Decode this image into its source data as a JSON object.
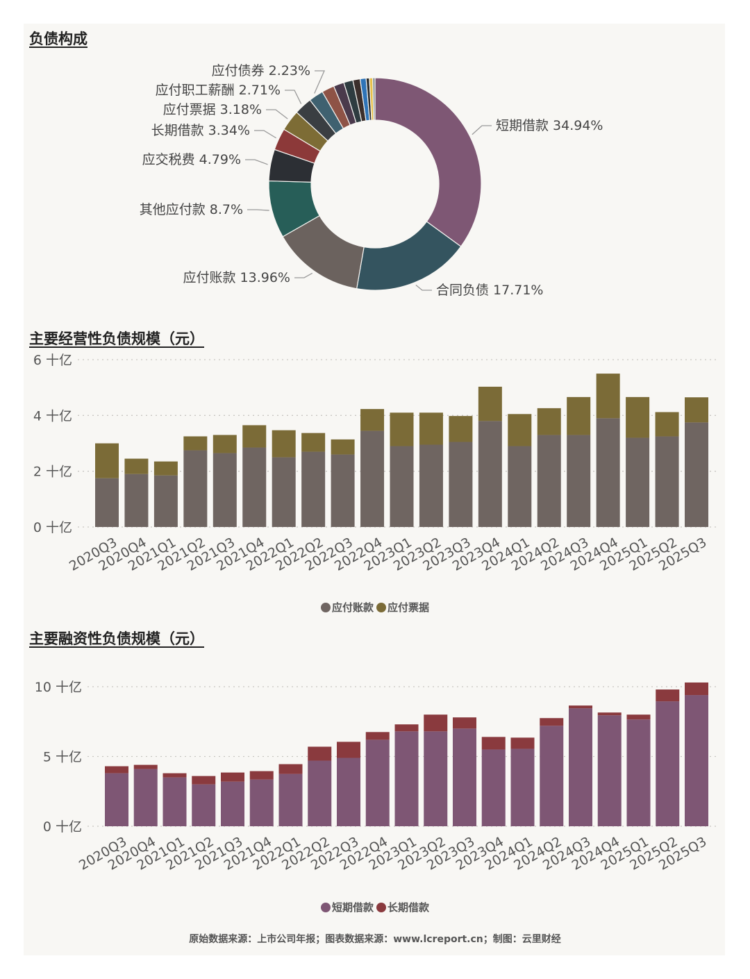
{
  "section_titles": {
    "pie": "负债构成",
    "operating": "主要经营性负债规模（元）",
    "financing": "主要融资性负债规模（元）"
  },
  "footer": "原始数据来源：上市公司年报；图表数据来源：www.lcreport.cn；制图：云里财经",
  "chart_data": [
    {
      "type": "pie",
      "variant": "donut",
      "title": "负债构成",
      "slices": [
        {
          "label": "短期借款",
          "value": 34.94,
          "display": "短期借款 34.94%",
          "color": "#7e5774",
          "labeled": true
        },
        {
          "label": "合同负债",
          "value": 17.71,
          "display": "合同负债 17.71%",
          "color": "#34545f",
          "labeled": true
        },
        {
          "label": "应付账款",
          "value": 13.96,
          "display": "应付账款 13.96%",
          "color": "#6b625e",
          "labeled": true
        },
        {
          "label": "其他应付款",
          "value": 8.7,
          "display": "其他应付款 8.7%",
          "color": "#275e58",
          "labeled": true
        },
        {
          "label": "应交税费",
          "value": 4.79,
          "display": "应交税费 4.79%",
          "color": "#2c2f34",
          "labeled": true
        },
        {
          "label": "长期借款",
          "value": 3.34,
          "display": "长期借款 3.34%",
          "color": "#8c3939",
          "labeled": true
        },
        {
          "label": "应付票据",
          "value": 3.18,
          "display": "应付票据 3.18%",
          "color": "#7d6c35",
          "labeled": true
        },
        {
          "label": "应付职工薪酬",
          "value": 2.71,
          "display": "应付职工薪酬 2.71%",
          "color": "#3a3e42",
          "labeled": true
        },
        {
          "label": "应付债券",
          "value": 2.23,
          "display": "应付债券 2.23%",
          "color": "#3f6170",
          "labeled": true
        },
        {
          "label": "",
          "value": 1.9,
          "display": "",
          "color": "#8e5346",
          "labeled": false
        },
        {
          "label": "",
          "value": 1.6,
          "display": "",
          "color": "#4a3a4c",
          "labeled": false
        },
        {
          "label": "",
          "value": 1.4,
          "display": "",
          "color": "#2e3c40",
          "labeled": false
        },
        {
          "label": "",
          "value": 1.1,
          "display": "",
          "color": "#3b2f2c",
          "labeled": false
        },
        {
          "label": "",
          "value": 0.9,
          "display": "",
          "color": "#2f74b7",
          "labeled": false
        },
        {
          "label": "",
          "value": 0.5,
          "display": "",
          "color": "#2c2c2c",
          "labeled": false
        },
        {
          "label": "",
          "value": 0.5,
          "display": "",
          "color": "#e8c14a",
          "labeled": false
        },
        {
          "label": "",
          "value": 0.34,
          "display": "",
          "color": "#7a8a8c",
          "labeled": false
        }
      ]
    },
    {
      "type": "bar",
      "stacked": true,
      "title": "主要经营性负债规模（元）",
      "categories": [
        "2020Q3",
        "2020Q4",
        "2021Q1",
        "2021Q2",
        "2021Q3",
        "2021Q4",
        "2022Q1",
        "2022Q2",
        "2022Q3",
        "2022Q4",
        "2023Q1",
        "2023Q2",
        "2023Q3",
        "2023Q4",
        "2024Q1",
        "2024Q2",
        "2024Q3",
        "2024Q4",
        "2025Q1",
        "2025Q2",
        "2025Q3"
      ],
      "series": [
        {
          "name": "应付账款",
          "color": "#6f6561",
          "values": [
            1.75,
            1.9,
            1.85,
            2.75,
            2.65,
            2.85,
            2.5,
            2.7,
            2.6,
            3.45,
            2.9,
            2.95,
            3.05,
            3.8,
            2.9,
            3.3,
            3.3,
            3.9,
            3.2,
            3.25,
            3.75
          ]
        },
        {
          "name": "应付票据",
          "color": "#7b6b37",
          "values": [
            1.25,
            0.55,
            0.5,
            0.5,
            0.65,
            0.8,
            0.97,
            0.67,
            0.54,
            0.78,
            1.2,
            1.15,
            0.93,
            1.23,
            1.15,
            0.96,
            1.36,
            1.6,
            1.46,
            0.87,
            0.9
          ]
        }
      ],
      "ylim": [
        0,
        6
      ],
      "yticks": [
        {
          "value": 0,
          "label": "0 十亿"
        },
        {
          "value": 2,
          "label": "2 十亿"
        },
        {
          "value": 4,
          "label": "4 十亿"
        },
        {
          "value": 6,
          "label": "6 十亿"
        }
      ],
      "grid": true,
      "legend_position": "bottom"
    },
    {
      "type": "bar",
      "stacked": true,
      "title": "主要融资性负债规模（元）",
      "categories": [
        "2020Q3",
        "2020Q4",
        "2021Q1",
        "2021Q2",
        "2021Q3",
        "2021Q4",
        "2022Q1",
        "2022Q2",
        "2022Q3",
        "2022Q4",
        "2023Q1",
        "2023Q2",
        "2023Q3",
        "2023Q4",
        "2024Q1",
        "2024Q2",
        "2024Q3",
        "2024Q4",
        "2025Q1",
        "2025Q2",
        "2025Q3"
      ],
      "series": [
        {
          "name": "短期借款",
          "color": "#7e5674",
          "values": [
            3.8,
            4.1,
            3.5,
            3.0,
            3.2,
            3.35,
            3.75,
            4.7,
            4.9,
            6.2,
            6.8,
            6.8,
            7.0,
            5.5,
            5.55,
            7.2,
            8.45,
            7.95,
            7.65,
            8.95,
            9.4
          ]
        },
        {
          "name": "长期借款",
          "color": "#8a3a3e",
          "values": [
            0.5,
            0.3,
            0.3,
            0.6,
            0.65,
            0.6,
            0.7,
            1.0,
            1.15,
            0.55,
            0.5,
            1.2,
            0.8,
            0.9,
            0.8,
            0.55,
            0.2,
            0.2,
            0.35,
            0.85,
            0.9
          ]
        }
      ],
      "ylim": [
        0,
        10
      ],
      "yticks": [
        {
          "value": 0,
          "label": "0 十亿"
        },
        {
          "value": 5,
          "label": "5 十亿"
        },
        {
          "value": 10,
          "label": "10 十亿"
        }
      ],
      "grid": true,
      "legend_position": "bottom"
    }
  ]
}
